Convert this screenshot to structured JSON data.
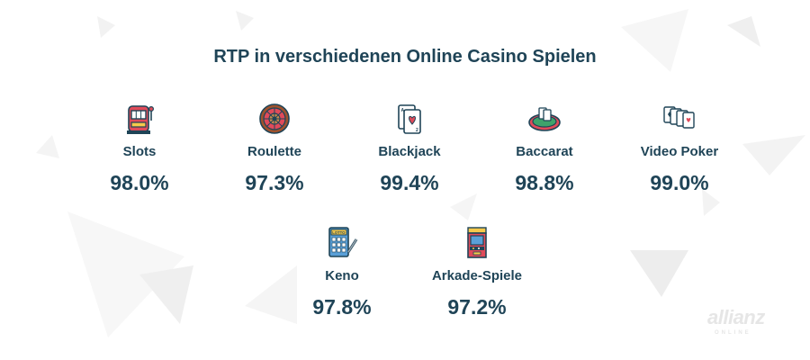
{
  "title": "RTP in verschiedenen Online Casino Spielen",
  "games": [
    {
      "name": "Slots",
      "rtp": "98.0%",
      "icon": "slot-machine-icon"
    },
    {
      "name": "Roulette",
      "rtp": "97.3%",
      "icon": "roulette-wheel-icon"
    },
    {
      "name": "Blackjack",
      "rtp": "99.4%",
      "icon": "playing-cards-icon"
    },
    {
      "name": "Baccarat",
      "rtp": "98.8%",
      "icon": "card-table-icon"
    },
    {
      "name": "Video Poker",
      "rtp": "99.0%",
      "icon": "poker-cards-icon"
    },
    {
      "name": "Keno",
      "rtp": "97.8%",
      "icon": "lotto-ticket-icon"
    },
    {
      "name": "Arkade-Spiele",
      "rtp": "97.2%",
      "icon": "arcade-machine-icon"
    }
  ],
  "logo": {
    "brand": "allianz",
    "sub": "ONLINE"
  },
  "colors": {
    "text": "#1f4457",
    "accent_red": "#e04b5a",
    "deco": "#f3f3f3"
  }
}
